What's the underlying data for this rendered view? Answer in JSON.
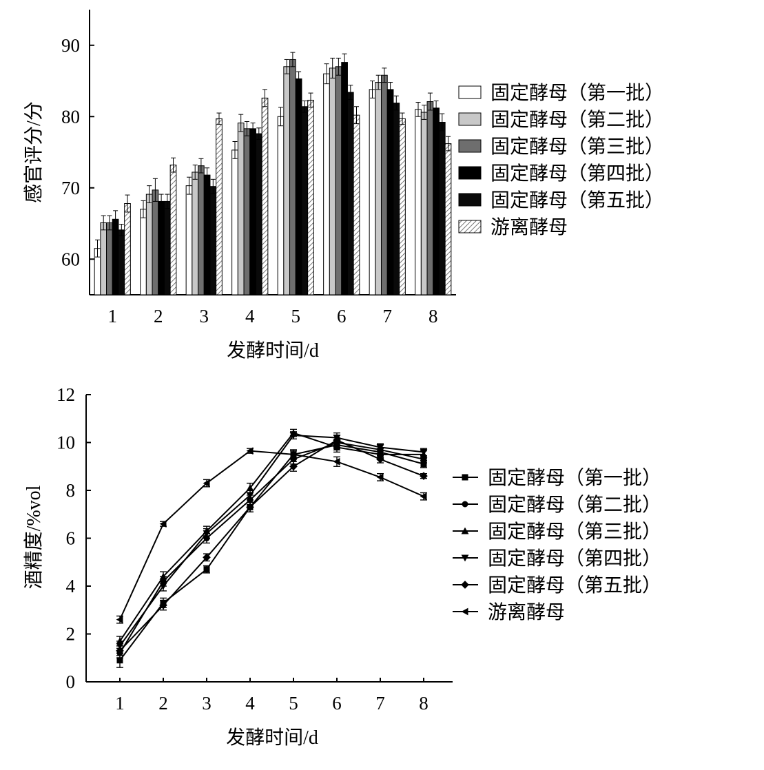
{
  "chart_data": [
    {
      "type": "bar",
      "title": "",
      "xlabel": "发酵时间/d",
      "ylabel": "感官评分/分",
      "categories": [
        "1",
        "2",
        "3",
        "4",
        "5",
        "6",
        "7",
        "8"
      ],
      "ylim": [
        55,
        95
      ],
      "yticks": [
        60,
        70,
        80,
        90
      ],
      "legend_position": "right",
      "series": [
        {
          "name": "固定酵母（第一批）",
          "fill": "#ffffff",
          "values": [
            61.5,
            67,
            70.3,
            75.3,
            80,
            86,
            83.8,
            81
          ],
          "errors": [
            1.2,
            1.2,
            1.2,
            1.2,
            1.3,
            1.4,
            1.2,
            1.0
          ]
        },
        {
          "name": "固定酵母（第二批）",
          "fill": "#c8c8c8",
          "values": [
            65.1,
            69.1,
            72.2,
            79.1,
            87,
            86.8,
            84.8,
            80.6
          ],
          "errors": [
            1.0,
            1.2,
            1.0,
            1.2,
            1.0,
            1.4,
            1.0,
            1.0
          ]
        },
        {
          "name": "固定酵母（第三批）",
          "fill": "#6e6e6e",
          "values": [
            65.1,
            69.7,
            73.1,
            78.3,
            88,
            87,
            85.8,
            82.1
          ],
          "errors": [
            1.0,
            1.6,
            1.0,
            1.0,
            1.0,
            1.2,
            1.0,
            1.2
          ]
        },
        {
          "name": "固定酵母（第四批）",
          "fill": "#000000",
          "values": [
            65.6,
            68.1,
            71.8,
            78.3,
            85.3,
            87.6,
            83.8,
            81.2
          ],
          "errors": [
            1.2,
            1.0,
            1.0,
            0.8,
            1.0,
            1.2,
            1.0,
            1.0
          ]
        },
        {
          "name": "固定酵母（第五批）",
          "fill": "#0a0a0a",
          "values": [
            64.1,
            68.1,
            70.2,
            77.6,
            81.4,
            83.4,
            81.9,
            79.2
          ],
          "errors": [
            0.8,
            1.0,
            1.0,
            0.8,
            0.8,
            1.0,
            1.0,
            1.2
          ]
        },
        {
          "name": "游离酵母",
          "fill": "hatch",
          "values": [
            67.8,
            73.2,
            79.7,
            82.6,
            82.3,
            80.2,
            79.7,
            76.2
          ],
          "errors": [
            1.2,
            1.0,
            0.8,
            1.2,
            1.0,
            1.2,
            0.8,
            1.0
          ]
        }
      ]
    },
    {
      "type": "line",
      "title": "",
      "xlabel": "发酵时间/d",
      "ylabel": "酒精度/%vol",
      "x": [
        1,
        2,
        3,
        4,
        5,
        6,
        7,
        8
      ],
      "ylim": [
        0,
        12
      ],
      "yticks": [
        0,
        2,
        4,
        6,
        8,
        10,
        12
      ],
      "legend_position": "right",
      "series": [
        {
          "name": "固定酵母（第一批）",
          "marker": "square",
          "values": [
            0.9,
            3.3,
            4.7,
            7.3,
            9.5,
            9.9,
            9.6,
            9.1
          ],
          "errors": [
            0.3,
            0.2,
            0.15,
            0.2,
            0.2,
            0.15,
            0.15,
            0.15
          ]
        },
        {
          "name": "固定酵母（第二批）",
          "marker": "circle",
          "values": [
            1.2,
            4.2,
            6.0,
            7.6,
            9.3,
            10.0,
            9.7,
            9.3
          ],
          "errors": [
            0.2,
            0.2,
            0.2,
            0.2,
            0.2,
            0.2,
            0.2,
            0.15
          ]
        },
        {
          "name": "固定酵母（第三批）",
          "marker": "triangle-up",
          "values": [
            1.7,
            4.4,
            6.3,
            8.1,
            10.4,
            9.8,
            9.5,
            9.5
          ],
          "errors": [
            0.2,
            0.2,
            0.2,
            0.2,
            0.15,
            0.2,
            0.15,
            0.15
          ]
        },
        {
          "name": "固定酵母（第四批）",
          "marker": "triangle-down",
          "values": [
            1.5,
            4.0,
            6.2,
            7.8,
            10.3,
            10.2,
            9.8,
            9.6
          ],
          "errors": [
            0.2,
            0.2,
            0.2,
            0.2,
            0.15,
            0.2,
            0.15,
            0.15
          ]
        },
        {
          "name": "固定酵母（第五批）",
          "marker": "diamond",
          "values": [
            1.3,
            3.2,
            5.2,
            7.3,
            9.0,
            10.1,
            9.3,
            8.6
          ],
          "errors": [
            0.2,
            0.2,
            0.15,
            0.2,
            0.2,
            0.2,
            0.15,
            0.1
          ]
        },
        {
          "name": "游离酵母",
          "marker": "triangle-left",
          "values": [
            2.6,
            6.6,
            8.3,
            9.65,
            9.5,
            9.2,
            8.55,
            7.75
          ],
          "errors": [
            0.15,
            0.1,
            0.15,
            0.1,
            0.15,
            0.2,
            0.15,
            0.15
          ]
        }
      ]
    }
  ]
}
